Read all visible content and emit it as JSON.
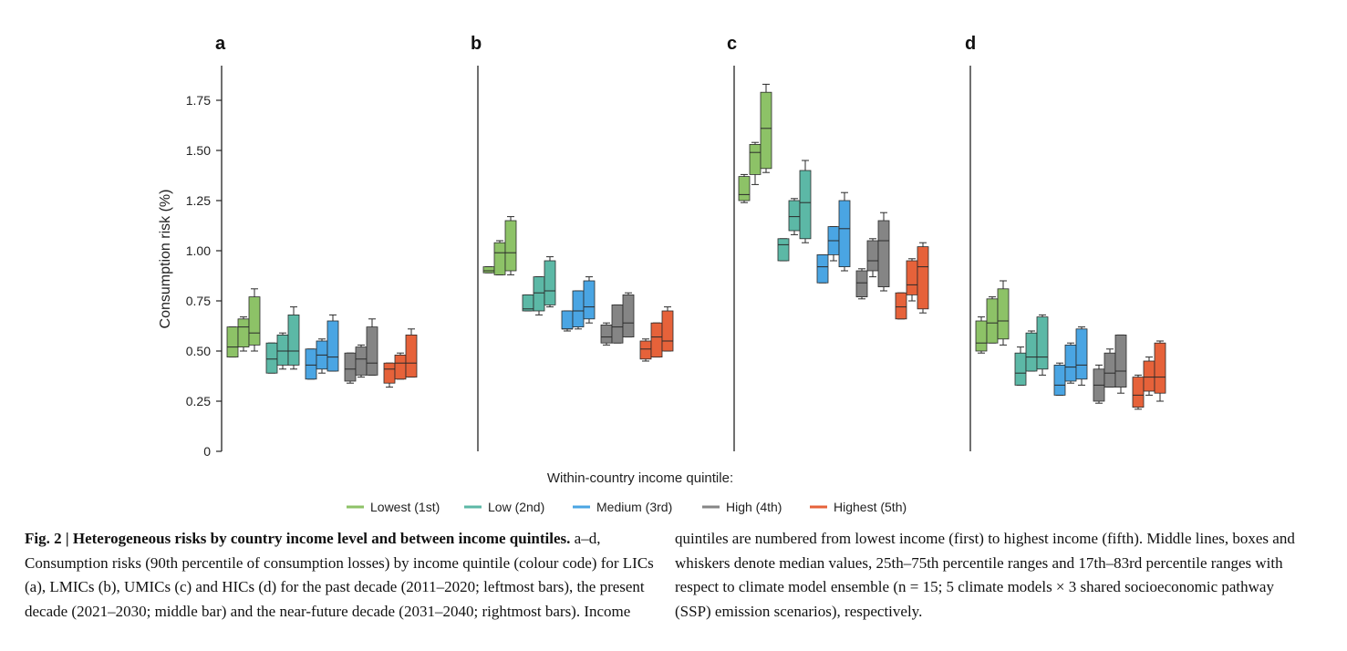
{
  "figure": {
    "y_axis_label": "Consumption risk (%)",
    "x_axis_title": "Within-country income quintile:",
    "legend": [
      {
        "label": "Lowest (1st)",
        "color": "#8dc267"
      },
      {
        "label": "Low (2nd)",
        "color": "#5cb8a6"
      },
      {
        "label": "Medium (3rd)",
        "color": "#4aa5e3"
      },
      {
        "label": "High (4th)",
        "color": "#858585"
      },
      {
        "label": "Highest (5th)",
        "color": "#e6623a"
      }
    ],
    "y_ticks": [
      "0",
      "0.25",
      "0.50",
      "0.75",
      "1.00",
      "1.25",
      "1.50",
      "1.75"
    ]
  },
  "caption": {
    "left": {
      "fig_label": "Fig. 2 | Heterogeneous risks by country income level and between income quintiles.",
      "text": " a–d, Consumption risks (90th percentile of consumption losses) by income quintile (colour code) for LICs (a), LMICs (b), UMICs (c) and HICs (d) for the past decade (2011–2020; leftmost bars), the present decade (2021–2030; middle bar) and the near-future decade (2031–2040; rightmost bars). Income"
    },
    "right": {
      "text": "quintiles are numbered from lowest income (first) to highest income (fifth). Middle lines, boxes and whiskers denote median values, 25th–75th percentile ranges and 17th–83rd percentile ranges with respect to climate model ensemble (n = 15; 5 climate models × 3 shared socioeconomic pathway (SSP) emission scenarios), respectively."
    }
  },
  "chart_data": [
    {
      "type": "box",
      "panel": "a",
      "ylabel": "Consumption risk (%)",
      "ylim": [
        0,
        1.85
      ],
      "groups": [
        "Lowest (1st)",
        "Low (2nd)",
        "Medium (3rd)",
        "High (4th)",
        "Highest (5th)"
      ],
      "decades": [
        "2011–2020",
        "2021–2030",
        "2031–2040"
      ],
      "boxes": [
        [
          {
            "wlo": 0.47,
            "q1": 0.47,
            "med": 0.52,
            "q3": 0.62,
            "whi": 0.62
          },
          {
            "wlo": 0.5,
            "q1": 0.52,
            "med": 0.62,
            "q3": 0.66,
            "whi": 0.67
          },
          {
            "wlo": 0.5,
            "q1": 0.53,
            "med": 0.59,
            "q3": 0.77,
            "whi": 0.81
          }
        ],
        [
          {
            "wlo": 0.39,
            "q1": 0.39,
            "med": 0.46,
            "q3": 0.54,
            "whi": 0.54
          },
          {
            "wlo": 0.41,
            "q1": 0.43,
            "med": 0.5,
            "q3": 0.58,
            "whi": 0.59
          },
          {
            "wlo": 0.41,
            "q1": 0.43,
            "med": 0.5,
            "q3": 0.68,
            "whi": 0.72
          }
        ],
        [
          {
            "wlo": 0.36,
            "q1": 0.36,
            "med": 0.43,
            "q3": 0.51,
            "whi": 0.51
          },
          {
            "wlo": 0.39,
            "q1": 0.41,
            "med": 0.48,
            "q3": 0.55,
            "whi": 0.56
          },
          {
            "wlo": 0.4,
            "q1": 0.4,
            "med": 0.47,
            "q3": 0.65,
            "whi": 0.68
          }
        ],
        [
          {
            "wlo": 0.34,
            "q1": 0.35,
            "med": 0.41,
            "q3": 0.49,
            "whi": 0.49
          },
          {
            "wlo": 0.37,
            "q1": 0.38,
            "med": 0.46,
            "q3": 0.52,
            "whi": 0.53
          },
          {
            "wlo": 0.38,
            "q1": 0.38,
            "med": 0.44,
            "q3": 0.62,
            "whi": 0.66
          }
        ],
        [
          {
            "wlo": 0.32,
            "q1": 0.34,
            "med": 0.41,
            "q3": 0.44,
            "whi": 0.44
          },
          {
            "wlo": 0.36,
            "q1": 0.36,
            "med": 0.44,
            "q3": 0.48,
            "whi": 0.49
          },
          {
            "wlo": 0.37,
            "q1": 0.37,
            "med": 0.44,
            "q3": 0.58,
            "whi": 0.61
          }
        ]
      ]
    },
    {
      "type": "box",
      "panel": "b",
      "ylim": [
        0,
        1.85
      ],
      "boxes": [
        [
          {
            "wlo": 0.89,
            "q1": 0.89,
            "med": 0.9,
            "q3": 0.92,
            "whi": 0.92
          },
          {
            "wlo": 0.88,
            "q1": 0.88,
            "med": 0.99,
            "q3": 1.04,
            "whi": 1.05
          },
          {
            "wlo": 0.88,
            "q1": 0.9,
            "med": 0.99,
            "q3": 1.15,
            "whi": 1.17
          }
        ],
        [
          {
            "wlo": 0.7,
            "q1": 0.7,
            "med": 0.71,
            "q3": 0.78,
            "whi": 0.78
          },
          {
            "wlo": 0.68,
            "q1": 0.7,
            "med": 0.79,
            "q3": 0.87,
            "whi": 0.87
          },
          {
            "wlo": 0.72,
            "q1": 0.73,
            "med": 0.8,
            "q3": 0.95,
            "whi": 0.97
          }
        ],
        [
          {
            "wlo": 0.6,
            "q1": 0.61,
            "med": 0.61,
            "q3": 0.7,
            "whi": 0.7
          },
          {
            "wlo": 0.61,
            "q1": 0.62,
            "med": 0.7,
            "q3": 0.8,
            "whi": 0.8
          },
          {
            "wlo": 0.64,
            "q1": 0.66,
            "med": 0.72,
            "q3": 0.85,
            "whi": 0.87
          }
        ],
        [
          {
            "wlo": 0.53,
            "q1": 0.54,
            "med": 0.57,
            "q3": 0.63,
            "whi": 0.64
          },
          {
            "wlo": 0.54,
            "q1": 0.54,
            "med": 0.62,
            "q3": 0.73,
            "whi": 0.73
          },
          {
            "wlo": 0.57,
            "q1": 0.57,
            "med": 0.64,
            "q3": 0.78,
            "whi": 0.79
          }
        ],
        [
          {
            "wlo": 0.45,
            "q1": 0.46,
            "med": 0.51,
            "q3": 0.55,
            "whi": 0.56
          },
          {
            "wlo": 0.47,
            "q1": 0.47,
            "med": 0.57,
            "q3": 0.64,
            "whi": 0.64
          },
          {
            "wlo": 0.5,
            "q1": 0.5,
            "med": 0.55,
            "q3": 0.7,
            "whi": 0.72
          }
        ]
      ]
    },
    {
      "type": "box",
      "panel": "c",
      "ylim": [
        0,
        1.85
      ],
      "boxes": [
        [
          {
            "wlo": 1.24,
            "q1": 1.25,
            "med": 1.28,
            "q3": 1.37,
            "whi": 1.38
          },
          {
            "wlo": 1.33,
            "q1": 1.38,
            "med": 1.49,
            "q3": 1.53,
            "whi": 1.54
          },
          {
            "wlo": 1.39,
            "q1": 1.41,
            "med": 1.61,
            "q3": 1.79,
            "whi": 1.83
          }
        ],
        [
          {
            "wlo": 0.95,
            "q1": 0.95,
            "med": 1.03,
            "q3": 1.06,
            "whi": 1.06
          },
          {
            "wlo": 1.08,
            "q1": 1.1,
            "med": 1.17,
            "q3": 1.25,
            "whi": 1.26
          },
          {
            "wlo": 1.04,
            "q1": 1.06,
            "med": 1.24,
            "q3": 1.4,
            "whi": 1.45
          }
        ],
        [
          {
            "wlo": 0.84,
            "q1": 0.84,
            "med": 0.92,
            "q3": 0.98,
            "whi": 0.98
          },
          {
            "wlo": 0.95,
            "q1": 0.98,
            "med": 1.05,
            "q3": 1.12,
            "whi": 1.12
          },
          {
            "wlo": 0.9,
            "q1": 0.92,
            "med": 1.11,
            "q3": 1.25,
            "whi": 1.29
          }
        ],
        [
          {
            "wlo": 0.76,
            "q1": 0.77,
            "med": 0.84,
            "q3": 0.9,
            "whi": 0.91
          },
          {
            "wlo": 0.87,
            "q1": 0.9,
            "med": 0.95,
            "q3": 1.05,
            "whi": 1.06
          },
          {
            "wlo": 0.8,
            "q1": 0.82,
            "med": 1.05,
            "q3": 1.15,
            "whi": 1.19
          }
        ],
        [
          {
            "wlo": 0.66,
            "q1": 0.66,
            "med": 0.72,
            "q3": 0.79,
            "whi": 0.79
          },
          {
            "wlo": 0.75,
            "q1": 0.78,
            "med": 0.83,
            "q3": 0.95,
            "whi": 0.96
          },
          {
            "wlo": 0.69,
            "q1": 0.71,
            "med": 0.92,
            "q3": 1.02,
            "whi": 1.04
          }
        ]
      ]
    },
    {
      "type": "box",
      "panel": "d",
      "ylim": [
        0,
        1.85
      ],
      "boxes": [
        [
          {
            "wlo": 0.49,
            "q1": 0.5,
            "med": 0.54,
            "q3": 0.65,
            "whi": 0.67
          },
          {
            "wlo": 0.54,
            "q1": 0.54,
            "med": 0.64,
            "q3": 0.76,
            "whi": 0.77
          },
          {
            "wlo": 0.53,
            "q1": 0.56,
            "med": 0.65,
            "q3": 0.81,
            "whi": 0.85
          }
        ],
        [
          {
            "wlo": 0.33,
            "q1": 0.33,
            "med": 0.39,
            "q3": 0.49,
            "whi": 0.52
          },
          {
            "wlo": 0.4,
            "q1": 0.4,
            "med": 0.47,
            "q3": 0.59,
            "whi": 0.6
          },
          {
            "wlo": 0.38,
            "q1": 0.41,
            "med": 0.47,
            "q3": 0.67,
            "whi": 0.68
          }
        ],
        [
          {
            "wlo": 0.28,
            "q1": 0.28,
            "med": 0.33,
            "q3": 0.43,
            "whi": 0.44
          },
          {
            "wlo": 0.34,
            "q1": 0.35,
            "med": 0.42,
            "q3": 0.53,
            "whi": 0.54
          },
          {
            "wlo": 0.33,
            "q1": 0.36,
            "med": 0.43,
            "q3": 0.61,
            "whi": 0.62
          }
        ],
        [
          {
            "wlo": 0.24,
            "q1": 0.25,
            "med": 0.33,
            "q3": 0.41,
            "whi": 0.43
          },
          {
            "wlo": 0.32,
            "q1": 0.32,
            "med": 0.39,
            "q3": 0.49,
            "whi": 0.51
          },
          {
            "wlo": 0.29,
            "q1": 0.32,
            "med": 0.4,
            "q3": 0.58,
            "whi": 0.58
          }
        ],
        [
          {
            "wlo": 0.21,
            "q1": 0.22,
            "med": 0.28,
            "q3": 0.37,
            "whi": 0.38
          },
          {
            "wlo": 0.28,
            "q1": 0.3,
            "med": 0.37,
            "q3": 0.45,
            "whi": 0.47
          },
          {
            "wlo": 0.25,
            "q1": 0.29,
            "med": 0.37,
            "q3": 0.54,
            "whi": 0.55
          }
        ]
      ]
    }
  ]
}
